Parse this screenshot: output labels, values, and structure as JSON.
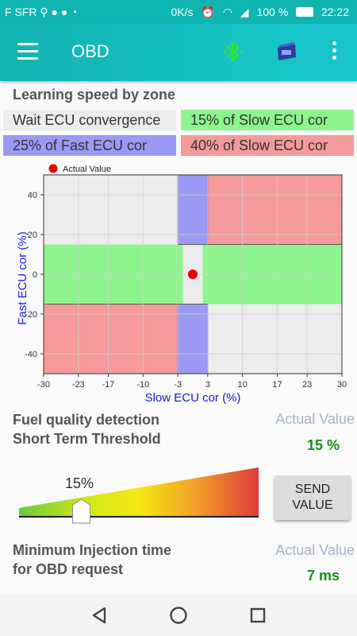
{
  "status_bar": {
    "carrier": "F SFR",
    "speed": "0K/s",
    "battery_pct": "100 %",
    "time": "22:22"
  },
  "app_bar": {
    "title": "OBD",
    "icons": [
      "menu-icon",
      "bluetooth-icon",
      "obd-adapter-icon",
      "more-vert-icon"
    ]
  },
  "learning": {
    "title": "Learning speed by zone",
    "zones": [
      {
        "label": "Wait ECU convergence",
        "color": "#ececec"
      },
      {
        "label": "15% of Slow ECU cor",
        "color": "#8ef58e"
      },
      {
        "label": "25% of Fast ECU cor",
        "color": "#9a9af5"
      },
      {
        "label": "40% of Slow ECU cor",
        "color": "#f49a9a"
      }
    ]
  },
  "chart_data": {
    "type": "scatter",
    "legend": "Actual Value",
    "legend_placement": "top-left",
    "xlabel": "Slow ECU cor (%)",
    "ylabel": "Fast ECU cor (%)",
    "xlim": [
      -30,
      30
    ],
    "ylim": [
      -50,
      50
    ],
    "xticks": [
      -30,
      -23,
      -17,
      -10,
      -3,
      3,
      10,
      17,
      23,
      30
    ],
    "yticks": [
      -40,
      -20,
      0,
      20,
      40
    ],
    "grid": true,
    "series": [
      {
        "name": "Actual Value",
        "color": "#ee0000",
        "points": [
          {
            "x": 0,
            "y": 0
          }
        ]
      }
    ],
    "zones": [
      {
        "label": "40% of Slow ECU cor",
        "x": [
          3,
          30
        ],
        "y": [
          15,
          50
        ],
        "color": "#f49a9a"
      },
      {
        "label": "40% of Slow ECU cor",
        "x": [
          -30,
          -3
        ],
        "y": [
          -50,
          -15
        ],
        "color": "#f49a9a"
      },
      {
        "label": "25% of Fast ECU cor",
        "x": [
          -3,
          3
        ],
        "y": [
          15,
          50
        ],
        "color": "#9a9af5"
      },
      {
        "label": "25% of Fast ECU cor",
        "x": [
          -3,
          3
        ],
        "y": [
          -50,
          -15
        ],
        "color": "#9a9af5"
      },
      {
        "label": "15% of Slow ECU cor",
        "x": [
          -30,
          -2
        ],
        "y": [
          -15,
          15
        ],
        "color": "#8ef58e"
      },
      {
        "label": "15% of Slow ECU cor",
        "x": [
          2,
          30
        ],
        "y": [
          -15,
          15
        ],
        "color": "#8ef58e"
      }
    ]
  },
  "fuel_quality": {
    "title_line1": "Fuel quality detection",
    "title_line2": "Short Term Threshold",
    "actual_label": "Actual Value",
    "actual_value": "15 %",
    "slider_label": "15%",
    "slider_value_fraction": 0.26,
    "send_label_line1": "SEND",
    "send_label_line2": "VALUE"
  },
  "min_injection": {
    "title_line1": "Minimum Injection time",
    "title_line2": "for OBD request",
    "actual_label": "Actual Value",
    "actual_value": "7 ms"
  },
  "nav_bar": {
    "icons": [
      "back-icon",
      "home-icon",
      "recents-icon"
    ]
  }
}
